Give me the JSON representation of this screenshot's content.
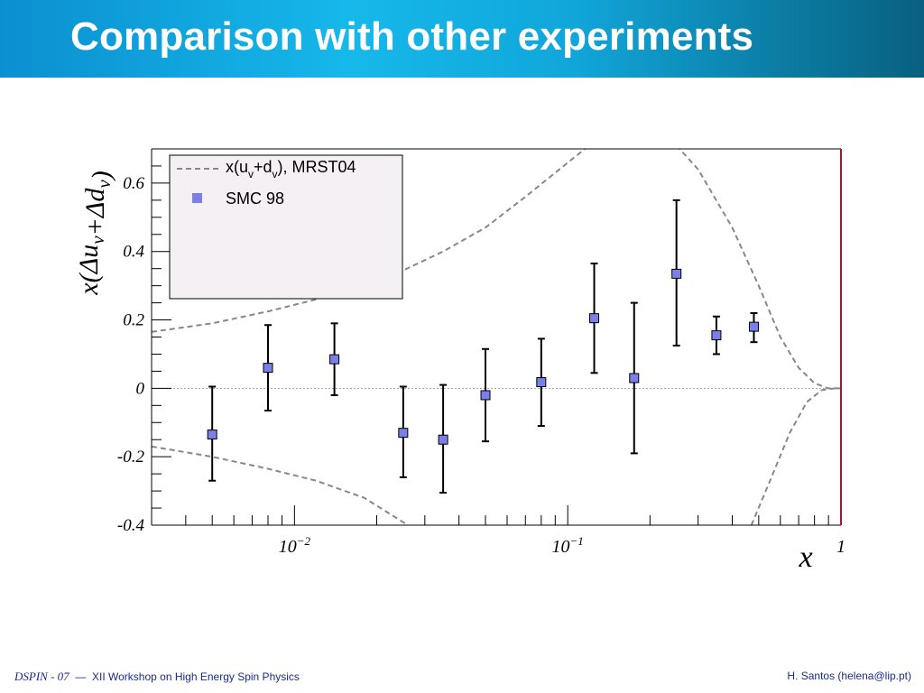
{
  "slide": {
    "title": "Comparison with other experiments",
    "footer": {
      "conference": "DSPIN - 07",
      "separator": "—",
      "workshop": "XII Workshop on High Energy Spin Physics",
      "author": "H. Santos  (helena@lip.pt)"
    }
  },
  "chart_data": {
    "type": "scatter",
    "title": "",
    "xlabel": "x",
    "ylabel": "x(Δu_v+Δd_v)",
    "xscale": "log",
    "xlim": [
      0.003,
      1
    ],
    "ylim": [
      -0.4,
      0.7
    ],
    "x_tick_labels": [
      "10^-2",
      "10^-1",
      "1"
    ],
    "y_tick_labels": [
      "-0.4",
      "-0.2",
      "0",
      "0.2",
      "0.4",
      "0.6"
    ],
    "y_ticks": [
      -0.4,
      -0.2,
      0,
      0.2,
      0.4,
      0.6
    ],
    "x_ticks": [
      0.01,
      0.1,
      1
    ],
    "zero_line": true,
    "legend_position": "top-left",
    "legend": {
      "entries": [
        {
          "label_main": "x(u",
          "sub1": "v",
          "label_mid": "+d",
          "sub2": "v",
          "label_end": "), MRST04",
          "style": "dashed-line",
          "color": "#888888"
        },
        {
          "label": "SMC 98",
          "style": "square-marker",
          "color": "#7b7fe8"
        }
      ]
    },
    "series": [
      {
        "name": "SMC 98",
        "color": "#7b7fe8",
        "points": [
          {
            "x": 0.005,
            "y": -0.135,
            "yerr_low": -0.27,
            "yerr_high": 0.005
          },
          {
            "x": 0.008,
            "y": 0.06,
            "yerr_low": -0.065,
            "yerr_high": 0.185
          },
          {
            "x": 0.014,
            "y": 0.085,
            "yerr_low": -0.02,
            "yerr_high": 0.19
          },
          {
            "x": 0.025,
            "y": -0.13,
            "yerr_low": -0.26,
            "yerr_high": 0.005
          },
          {
            "x": 0.035,
            "y": -0.15,
            "yerr_low": -0.305,
            "yerr_high": 0.01
          },
          {
            "x": 0.05,
            "y": -0.02,
            "yerr_low": -0.155,
            "yerr_high": 0.115
          },
          {
            "x": 0.08,
            "y": 0.018,
            "yerr_low": -0.11,
            "yerr_high": 0.145
          },
          {
            "x": 0.125,
            "y": 0.205,
            "yerr_low": 0.045,
            "yerr_high": 0.365
          },
          {
            "x": 0.175,
            "y": 0.03,
            "yerr_low": -0.19,
            "yerr_high": 0.25
          },
          {
            "x": 0.25,
            "y": 0.335,
            "yerr_low": 0.125,
            "yerr_high": 0.55
          },
          {
            "x": 0.35,
            "y": 0.155,
            "yerr_low": 0.1,
            "yerr_high": 0.21
          },
          {
            "x": 0.48,
            "y": 0.18,
            "yerr_low": 0.135,
            "yerr_high": 0.22
          }
        ]
      }
    ],
    "curves": [
      {
        "name": "upper",
        "style": "dashed",
        "color": "#888888",
        "points": [
          [
            0.003,
            0.165
          ],
          [
            0.005,
            0.19
          ],
          [
            0.008,
            0.225
          ],
          [
            0.012,
            0.26
          ],
          [
            0.018,
            0.3
          ],
          [
            0.025,
            0.345
          ],
          [
            0.035,
            0.4
          ],
          [
            0.05,
            0.47
          ],
          [
            0.07,
            0.56
          ],
          [
            0.1,
            0.66
          ],
          [
            0.12,
            0.71
          ]
        ]
      },
      {
        "name": "upper-right",
        "style": "dashed",
        "color": "#888888",
        "points": [
          [
            0.25,
            0.71
          ],
          [
            0.3,
            0.64
          ],
          [
            0.4,
            0.47
          ],
          [
            0.5,
            0.3
          ],
          [
            0.6,
            0.15
          ],
          [
            0.7,
            0.06
          ],
          [
            0.8,
            0.015
          ],
          [
            0.9,
            0.0
          ],
          [
            1.0,
            0.0
          ]
        ]
      },
      {
        "name": "lower",
        "style": "dashed",
        "color": "#888888",
        "points": [
          [
            0.003,
            -0.17
          ],
          [
            0.005,
            -0.2
          ],
          [
            0.008,
            -0.235
          ],
          [
            0.012,
            -0.27
          ],
          [
            0.018,
            -0.32
          ],
          [
            0.026,
            -0.4
          ]
        ]
      },
      {
        "name": "lower-right",
        "style": "dashed",
        "color": "#888888",
        "points": [
          [
            0.47,
            -0.4
          ],
          [
            0.55,
            -0.27
          ],
          [
            0.65,
            -0.13
          ],
          [
            0.75,
            -0.04
          ],
          [
            0.85,
            -0.005
          ],
          [
            0.95,
            0.0
          ],
          [
            1.0,
            0.0
          ]
        ]
      }
    ]
  }
}
